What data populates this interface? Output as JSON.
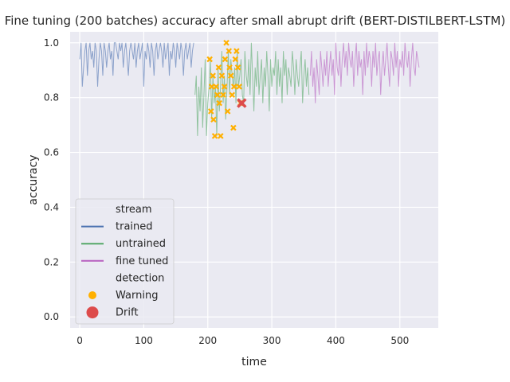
{
  "chart_data": {
    "type": "line",
    "title": "Fine tuning (200 batches) accuracy after small abrupt drift (BERT-DISTILBERT-LSTM)",
    "xlabel": "time",
    "ylabel": "accuracy",
    "xlim": [
      -15,
      560
    ],
    "ylim": [
      -0.04,
      1.04
    ],
    "xticks": [
      0,
      100,
      200,
      300,
      400,
      500
    ],
    "yticks": [
      0.0,
      0.2,
      0.4,
      0.6,
      0.8,
      1.0
    ],
    "xtick_labels": [
      "0",
      "100",
      "200",
      "300",
      "400",
      "500"
    ],
    "ytick_labels": [
      "0.0",
      "0.2",
      "0.4",
      "0.6",
      "0.8",
      "1.0"
    ],
    "grid": true,
    "background": "#eaeaf2",
    "legend": {
      "placement": "lower-left",
      "stream_title": "stream",
      "detection_title": "detection",
      "entries": [
        {
          "label": "trained",
          "kind": "line",
          "color": "#4c72b0"
        },
        {
          "label": "untrained",
          "kind": "line",
          "color": "#55a868"
        },
        {
          "label": "fine tuned",
          "kind": "line",
          "color": "#b65fc0"
        },
        {
          "label": "Warning",
          "kind": "dot",
          "color": "#ffb000"
        },
        {
          "label": "Drift",
          "kind": "bigdot",
          "color": "#dd4b4b"
        }
      ]
    },
    "series": [
      {
        "name": "trained",
        "color": "#4c72b0",
        "x_start": 0,
        "x_step": 2,
        "values": [
          0.94,
          1.0,
          0.84,
          0.91,
          0.97,
          1.0,
          0.88,
          0.97,
          1.0,
          0.94,
          0.97,
          0.91,
          1.0,
          0.97,
          0.84,
          0.94,
          1.0,
          0.97,
          0.88,
          1.0,
          0.97,
          0.91,
          0.97,
          1.0,
          0.94,
          0.97,
          0.88,
          1.0,
          1.0,
          0.97,
          0.94,
          1.0,
          0.97,
          1.0,
          0.91,
          0.97,
          1.0,
          0.94,
          0.88,
          0.97,
          1.0,
          0.97,
          0.94,
          1.0,
          0.91,
          0.97,
          1.0,
          0.94,
          0.97,
          1.0,
          0.84,
          0.97,
          0.94,
          1.0,
          0.97,
          0.91,
          1.0,
          0.97,
          0.88,
          0.97,
          1.0,
          0.94,
          0.97,
          1.0,
          0.97,
          0.91,
          1.0,
          0.94,
          0.97,
          1.0,
          0.88,
          0.97,
          0.94,
          1.0,
          0.97,
          0.91,
          1.0,
          0.97,
          0.94,
          1.0,
          0.97,
          0.88,
          0.97,
          1.0,
          0.94,
          0.97,
          1.0,
          0.91,
          0.97,
          1.0
        ]
      },
      {
        "name": "untrained",
        "color": "#55a868",
        "x_start": 180,
        "x_step": 2,
        "values": [
          0.81,
          0.88,
          0.66,
          0.84,
          0.75,
          0.91,
          0.69,
          0.81,
          0.94,
          0.66,
          0.78,
          0.84,
          0.94,
          0.72,
          0.88,
          0.78,
          0.84,
          0.66,
          0.91,
          0.75,
          0.84,
          0.97,
          0.78,
          0.88,
          0.72,
          0.84,
          0.97,
          0.81,
          0.94,
          0.88,
          0.84,
          0.91,
          0.78,
          0.97,
          0.84,
          0.88,
          0.94,
          0.81,
          0.78,
          0.97,
          0.88,
          0.84,
          0.94,
          0.81,
          1.0,
          0.88,
          0.75,
          0.91,
          0.84,
          0.97,
          0.81,
          0.88,
          0.94,
          0.78,
          0.91,
          0.84,
          0.97,
          0.88,
          0.75,
          0.94,
          0.84,
          0.91,
          0.88,
          0.97,
          0.81,
          0.94,
          0.84,
          0.91,
          0.78,
          0.97,
          0.88,
          0.94,
          0.81,
          0.91,
          0.88,
          0.84,
          0.97,
          0.91,
          0.81,
          0.94,
          0.88,
          0.84,
          0.91,
          0.97,
          0.78,
          0.88,
          0.94,
          0.84,
          0.91,
          0.81
        ]
      },
      {
        "name": "fine tuned",
        "color": "#b65fc0",
        "x_start": 360,
        "x_step": 2,
        "values": [
          0.88,
          0.97,
          0.84,
          0.91,
          0.78,
          0.94,
          0.88,
          0.81,
          0.97,
          0.91,
          0.84,
          0.94,
          0.88,
          0.97,
          0.84,
          0.91,
          0.97,
          0.88,
          0.94,
          0.81,
          1.0,
          0.91,
          0.88,
          0.97,
          0.84,
          0.94,
          1.0,
          0.91,
          0.97,
          0.88,
          1.0,
          0.94,
          0.91,
          0.97,
          0.84,
          0.94,
          1.0,
          0.88,
          0.97,
          0.91,
          0.94,
          0.81,
          0.97,
          0.88,
          1.0,
          0.91,
          0.97,
          0.94,
          0.84,
          0.97,
          0.91,
          1.0,
          0.88,
          0.94,
          0.97,
          0.81,
          0.91,
          0.97,
          0.88,
          0.94,
          1.0,
          0.91,
          0.84,
          0.97,
          0.94,
          0.88,
          1.0,
          0.91,
          0.97,
          0.84,
          0.94,
          0.91,
          0.97,
          0.88,
          1.0,
          0.94,
          0.91,
          0.97,
          0.84,
          0.94,
          1.0,
          0.91,
          0.88,
          0.97,
          0.94,
          0.91
        ]
      }
    ],
    "warnings": [
      {
        "x": 203,
        "y": 0.94
      },
      {
        "x": 205,
        "y": 0.75
      },
      {
        "x": 206,
        "y": 0.84
      },
      {
        "x": 208,
        "y": 0.88
      },
      {
        "x": 209,
        "y": 0.72
      },
      {
        "x": 211,
        "y": 0.66
      },
      {
        "x": 213,
        "y": 0.84
      },
      {
        "x": 215,
        "y": 0.81
      },
      {
        "x": 217,
        "y": 0.91
      },
      {
        "x": 218,
        "y": 0.78
      },
      {
        "x": 220,
        "y": 0.66
      },
      {
        "x": 222,
        "y": 0.88
      },
      {
        "x": 224,
        "y": 0.81
      },
      {
        "x": 226,
        "y": 0.84
      },
      {
        "x": 227,
        "y": 0.94
      },
      {
        "x": 229,
        "y": 1.0
      },
      {
        "x": 231,
        "y": 0.75
      },
      {
        "x": 233,
        "y": 0.97
      },
      {
        "x": 234,
        "y": 0.91
      },
      {
        "x": 236,
        "y": 0.88
      },
      {
        "x": 238,
        "y": 0.81
      },
      {
        "x": 240,
        "y": 0.69
      },
      {
        "x": 241,
        "y": 0.84
      },
      {
        "x": 243,
        "y": 0.94
      },
      {
        "x": 245,
        "y": 0.97
      },
      {
        "x": 247,
        "y": 0.91
      },
      {
        "x": 249,
        "y": 0.84
      },
      {
        "x": 251,
        "y": 0.78
      }
    ],
    "drifts": [
      {
        "x": 253,
        "y": 0.78
      }
    ]
  }
}
